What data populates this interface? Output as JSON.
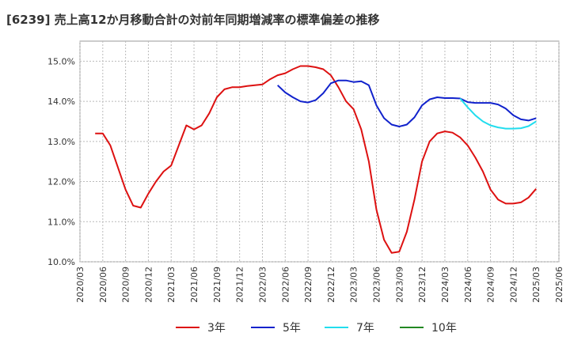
{
  "chart_data": {
    "type": "line",
    "title": "[6239]  売上高12か月移動合計の対前年同期増減率の標準偏差の推移",
    "xlabel": "",
    "ylabel": "",
    "ylim": [
      10.0,
      15.5
    ],
    "y_ticks": [
      "10.0%",
      "11.0%",
      "12.0%",
      "13.0%",
      "14.0%",
      "15.0%"
    ],
    "y_tick_values": [
      10.0,
      11.0,
      12.0,
      13.0,
      14.0,
      15.0
    ],
    "x_ticks": [
      "2020/03",
      "2020/06",
      "2020/09",
      "2020/12",
      "2021/03",
      "2021/06",
      "2021/09",
      "2021/12",
      "2022/03",
      "2022/06",
      "2022/09",
      "2022/12",
      "2023/03",
      "2023/06",
      "2023/09",
      "2023/12",
      "2024/03",
      "2024/06",
      "2024/09",
      "2024/12",
      "2025/03",
      "2025/06"
    ],
    "grid": true,
    "legend_position": "bottom",
    "series": [
      {
        "name": "3年",
        "color": "#dd1111",
        "points": [
          [
            "2020/05",
            13.2
          ],
          [
            "2020/06",
            13.2
          ],
          [
            "2020/07",
            12.9
          ],
          [
            "2020/08",
            12.35
          ],
          [
            "2020/09",
            11.8
          ],
          [
            "2020/10",
            11.4
          ],
          [
            "2020/11",
            11.35
          ],
          [
            "2020/12",
            11.7
          ],
          [
            "2021/01",
            12.0
          ],
          [
            "2021/02",
            12.25
          ],
          [
            "2021/03",
            12.4
          ],
          [
            "2021/04",
            12.9
          ],
          [
            "2021/05",
            13.4
          ],
          [
            "2021/06",
            13.3
          ],
          [
            "2021/07",
            13.4
          ],
          [
            "2021/08",
            13.7
          ],
          [
            "2021/09",
            14.1
          ],
          [
            "2021/10",
            14.3
          ],
          [
            "2021/11",
            14.35
          ],
          [
            "2021/12",
            14.35
          ],
          [
            "2022/01",
            14.38
          ],
          [
            "2022/02",
            14.4
          ],
          [
            "2022/03",
            14.42
          ],
          [
            "2022/04",
            14.55
          ],
          [
            "2022/05",
            14.65
          ],
          [
            "2022/06",
            14.7
          ],
          [
            "2022/07",
            14.8
          ],
          [
            "2022/08",
            14.88
          ],
          [
            "2022/09",
            14.88
          ],
          [
            "2022/10",
            14.85
          ],
          [
            "2022/11",
            14.8
          ],
          [
            "2022/12",
            14.65
          ],
          [
            "2023/01",
            14.35
          ],
          [
            "2023/02",
            14.0
          ],
          [
            "2023/03",
            13.8
          ],
          [
            "2023/04",
            13.3
          ],
          [
            "2023/05",
            12.5
          ],
          [
            "2023/06",
            11.3
          ],
          [
            "2023/07",
            10.55
          ],
          [
            "2023/08",
            10.22
          ],
          [
            "2023/09",
            10.25
          ],
          [
            "2023/10",
            10.75
          ],
          [
            "2023/11",
            11.55
          ],
          [
            "2023/12",
            12.5
          ],
          [
            "2024/01",
            13.0
          ],
          [
            "2024/02",
            13.2
          ],
          [
            "2024/03",
            13.25
          ],
          [
            "2024/04",
            13.22
          ],
          [
            "2024/05",
            13.1
          ],
          [
            "2024/06",
            12.9
          ],
          [
            "2024/07",
            12.6
          ],
          [
            "2024/08",
            12.25
          ],
          [
            "2024/09",
            11.8
          ],
          [
            "2024/10",
            11.55
          ],
          [
            "2024/11",
            11.45
          ],
          [
            "2024/12",
            11.45
          ],
          [
            "2025/01",
            11.48
          ],
          [
            "2025/02",
            11.6
          ],
          [
            "2025/03",
            11.82
          ]
        ]
      },
      {
        "name": "5年",
        "color": "#1122cc",
        "points": [
          [
            "2022/05",
            14.4
          ],
          [
            "2022/06",
            14.22
          ],
          [
            "2022/07",
            14.1
          ],
          [
            "2022/08",
            14.0
          ],
          [
            "2022/09",
            13.97
          ],
          [
            "2022/10",
            14.03
          ],
          [
            "2022/11",
            14.2
          ],
          [
            "2022/12",
            14.45
          ],
          [
            "2023/01",
            14.52
          ],
          [
            "2023/02",
            14.52
          ],
          [
            "2023/03",
            14.48
          ],
          [
            "2023/04",
            14.5
          ],
          [
            "2023/05",
            14.4
          ],
          [
            "2023/06",
            13.9
          ],
          [
            "2023/07",
            13.58
          ],
          [
            "2023/08",
            13.42
          ],
          [
            "2023/09",
            13.37
          ],
          [
            "2023/10",
            13.42
          ],
          [
            "2023/11",
            13.6
          ],
          [
            "2023/12",
            13.9
          ],
          [
            "2024/01",
            14.05
          ],
          [
            "2024/02",
            14.1
          ],
          [
            "2024/03",
            14.08
          ],
          [
            "2024/04",
            14.08
          ],
          [
            "2024/05",
            14.07
          ],
          [
            "2024/06",
            13.98
          ],
          [
            "2024/07",
            13.96
          ],
          [
            "2024/08",
            13.96
          ],
          [
            "2024/09",
            13.96
          ],
          [
            "2024/10",
            13.92
          ],
          [
            "2024/11",
            13.82
          ],
          [
            "2024/12",
            13.65
          ],
          [
            "2025/01",
            13.55
          ],
          [
            "2025/02",
            13.52
          ],
          [
            "2025/03",
            13.58
          ]
        ]
      },
      {
        "name": "7年",
        "color": "#22ddee",
        "points": [
          [
            "2024/05",
            14.07
          ],
          [
            "2024/06",
            13.85
          ],
          [
            "2024/07",
            13.65
          ],
          [
            "2024/08",
            13.5
          ],
          [
            "2024/09",
            13.4
          ],
          [
            "2024/10",
            13.35
          ],
          [
            "2024/11",
            13.32
          ],
          [
            "2024/12",
            13.32
          ],
          [
            "2025/01",
            13.33
          ],
          [
            "2025/02",
            13.38
          ],
          [
            "2025/03",
            13.5
          ]
        ]
      },
      {
        "name": "10年",
        "color": "#228822",
        "points": []
      }
    ]
  }
}
